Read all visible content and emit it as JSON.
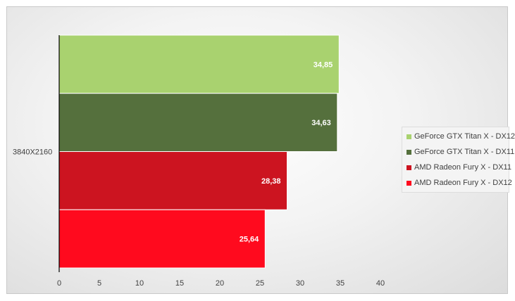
{
  "colors": {
    "titan_dx12": "#a9d26f",
    "titan_dx11": "#55703d",
    "fury_dx11": "#cc1420",
    "fury_dx12": "#ff0a1e"
  },
  "chart_data": {
    "type": "bar",
    "orientation": "horizontal",
    "categories": [
      "3840X2160"
    ],
    "series": [
      {
        "name": "GeForce GTX Titan X - DX12",
        "values": [
          34.85
        ],
        "label": "34,85",
        "color": "#a9d26f"
      },
      {
        "name": "GeForce GTX Titan X - DX11",
        "values": [
          34.63
        ],
        "label": "34,63",
        "color": "#55703d"
      },
      {
        "name": "AMD Radeon Fury X - DX11",
        "values": [
          28.38
        ],
        "label": "28,38",
        "color": "#cc1420"
      },
      {
        "name": "AMD Radeon Fury X - DX12",
        "values": [
          25.64
        ],
        "label": "25,64",
        "color": "#ff0a1e"
      }
    ],
    "xlim": [
      0,
      40
    ],
    "xticks": [
      "0",
      "5",
      "10",
      "15",
      "20",
      "25",
      "30",
      "35",
      "40"
    ],
    "title": "",
    "xlabel": "",
    "ylabel": "",
    "grid": false,
    "legend_position": "right"
  }
}
